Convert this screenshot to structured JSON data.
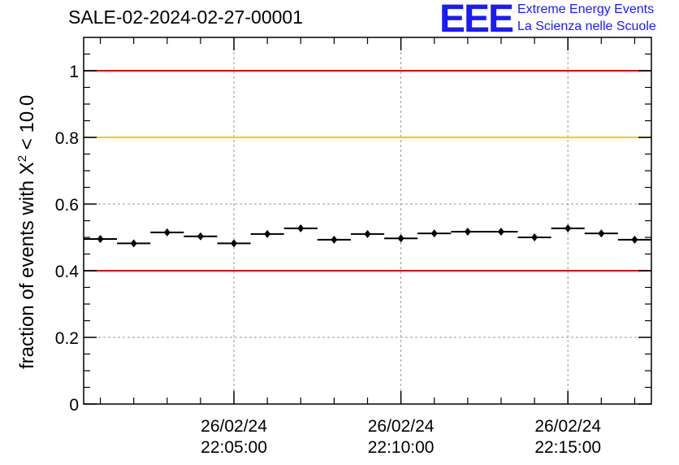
{
  "title": "SALE-02-2024-02-27-00001",
  "logo": {
    "mark": "EEE",
    "line1": "Extreme Energy Events",
    "line2": "La Scienza nelle Scuole"
  },
  "chart_data": {
    "type": "scatter",
    "title": "SALE-02-2024-02-27-00001",
    "ylabel_prefix": "fraction of events with ",
    "ylabel_symbol": "X",
    "ylabel_sup": "2",
    "ylabel_suffix": " < 10.0",
    "xlabel": "",
    "x_time_range": [
      "26/02/24 22:00:30",
      "26/02/24 22:17:30"
    ],
    "ylim": [
      0,
      1.1
    ],
    "y_ticks": [
      0,
      0.2,
      0.4,
      0.6,
      0.8,
      1
    ],
    "y_tick_labels": [
      "0",
      "0.2",
      "0.4",
      "0.6",
      "0.8",
      "1"
    ],
    "x_ticks": [
      {
        "date": "26/02/24",
        "time": "22:05:00"
      },
      {
        "date": "26/02/24",
        "time": "22:10:00"
      },
      {
        "date": "26/02/24",
        "time": "22:15:00"
      }
    ],
    "grid": true,
    "reference_lines": [
      {
        "y": 1.0,
        "color": "#dd0000"
      },
      {
        "y": 0.8,
        "color": "#ffc400"
      },
      {
        "y": 0.4,
        "color": "#dd0000"
      }
    ],
    "bin_width_seconds": 60,
    "points": [
      {
        "x": "22:01:00",
        "y": 0.495
      },
      {
        "x": "22:02:00",
        "y": 0.482
      },
      {
        "x": "22:03:00",
        "y": 0.515
      },
      {
        "x": "22:04:00",
        "y": 0.503
      },
      {
        "x": "22:05:00",
        "y": 0.482
      },
      {
        "x": "22:06:00",
        "y": 0.51
      },
      {
        "x": "22:07:00",
        "y": 0.527
      },
      {
        "x": "22:08:00",
        "y": 0.493
      },
      {
        "x": "22:09:00",
        "y": 0.51
      },
      {
        "x": "22:10:00",
        "y": 0.497
      },
      {
        "x": "22:11:00",
        "y": 0.512
      },
      {
        "x": "22:12:00",
        "y": 0.517
      },
      {
        "x": "22:13:00",
        "y": 0.517
      },
      {
        "x": "22:14:00",
        "y": 0.5
      },
      {
        "x": "22:15:00",
        "y": 0.527
      },
      {
        "x": "22:16:00",
        "y": 0.512
      },
      {
        "x": "22:17:00",
        "y": 0.493
      }
    ],
    "marker_color": "#000000"
  }
}
